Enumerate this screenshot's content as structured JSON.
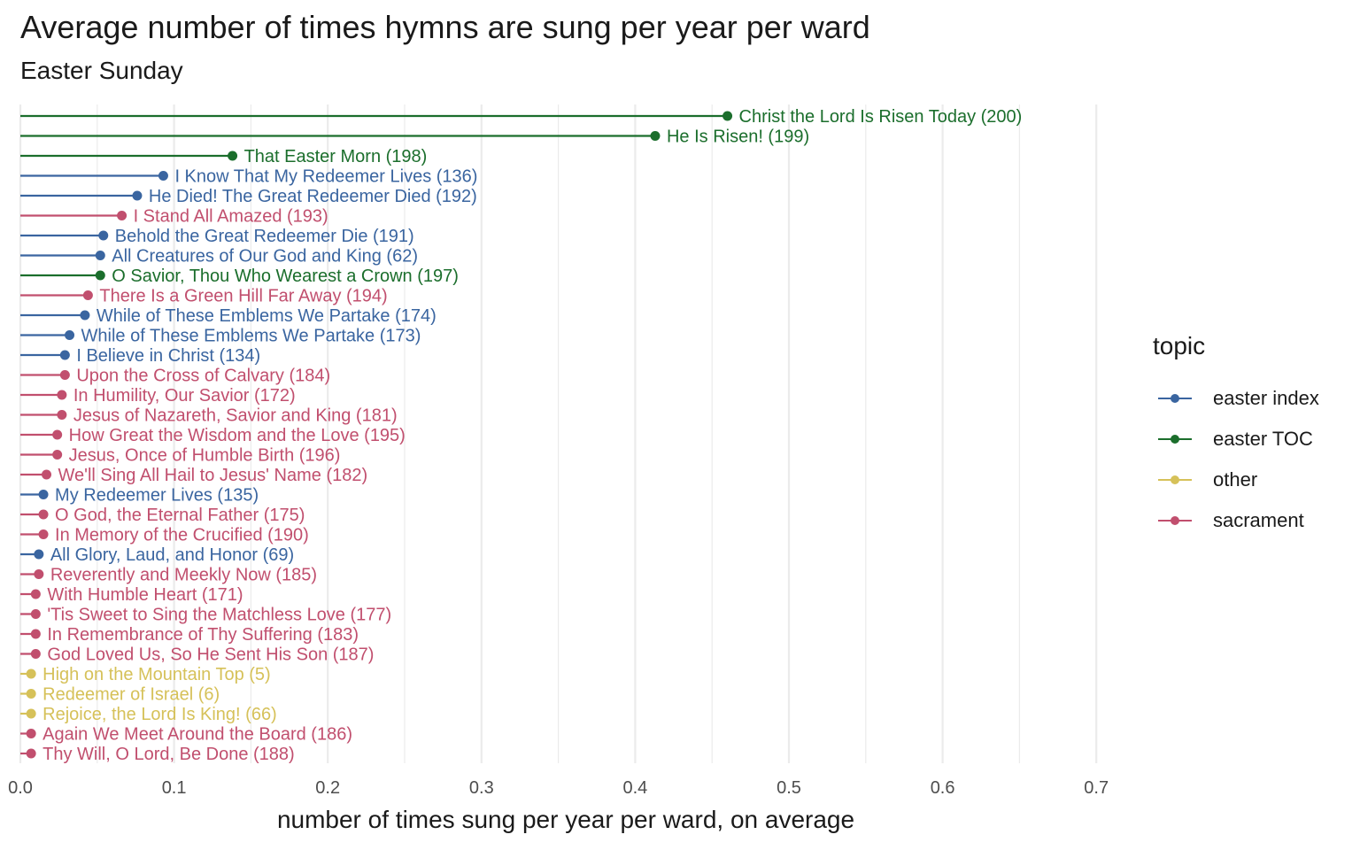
{
  "title": "Average number of times hymns are sung per year per ward",
  "subtitle": "Easter Sunday",
  "legend": {
    "title": "topic",
    "items": [
      {
        "label": "easter index",
        "color": "#3a65a0"
      },
      {
        "label": "easter TOC",
        "color": "#1b6e2c"
      },
      {
        "label": "other",
        "color": "#d6c159"
      },
      {
        "label": "sacrament",
        "color": "#c14f6e"
      }
    ]
  },
  "chart_data": {
    "type": "lollipop",
    "title": "Average number of times hymns are sung per year per ward",
    "subtitle": "Easter Sunday",
    "xlabel": "number of times sung per year per ward, on average",
    "ylabel": "",
    "xlim": [
      0,
      0.7
    ],
    "xticks": [
      "0.0",
      "0.1",
      "0.2",
      "0.3",
      "0.4",
      "0.5",
      "0.6",
      "0.7"
    ],
    "grid": true,
    "legend_position": "right",
    "series": [
      {
        "label": "Christ the Lord Is Risen Today (200)",
        "value": 0.46,
        "topic": "easter TOC"
      },
      {
        "label": "He Is Risen! (199)",
        "value": 0.413,
        "topic": "easter TOC"
      },
      {
        "label": "That Easter Morn (198)",
        "value": 0.138,
        "topic": "easter TOC"
      },
      {
        "label": "I Know That My Redeemer Lives (136)",
        "value": 0.093,
        "topic": "easter index"
      },
      {
        "label": "He Died! The Great Redeemer Died (192)",
        "value": 0.076,
        "topic": "easter index"
      },
      {
        "label": "I Stand All Amazed (193)",
        "value": 0.066,
        "topic": "sacrament"
      },
      {
        "label": "Behold the Great Redeemer Die (191)",
        "value": 0.054,
        "topic": "easter index"
      },
      {
        "label": "All Creatures of Our God and King (62)",
        "value": 0.052,
        "topic": "easter index"
      },
      {
        "label": "O Savior, Thou Who Wearest a Crown (197)",
        "value": 0.052,
        "topic": "easter TOC"
      },
      {
        "label": "There Is a Green Hill Far Away (194)",
        "value": 0.044,
        "topic": "sacrament"
      },
      {
        "label": "While of These Emblems We Partake (174)",
        "value": 0.042,
        "topic": "easter index"
      },
      {
        "label": "While of These Emblems We Partake (173)",
        "value": 0.032,
        "topic": "easter index"
      },
      {
        "label": "I Believe in Christ (134)",
        "value": 0.029,
        "topic": "easter index"
      },
      {
        "label": "Upon the Cross of Calvary (184)",
        "value": 0.029,
        "topic": "sacrament"
      },
      {
        "label": "In Humility, Our Savior (172)",
        "value": 0.027,
        "topic": "sacrament"
      },
      {
        "label": "Jesus of Nazareth, Savior and King (181)",
        "value": 0.027,
        "topic": "sacrament"
      },
      {
        "label": "How Great the Wisdom and the Love (195)",
        "value": 0.024,
        "topic": "sacrament"
      },
      {
        "label": "Jesus, Once of Humble Birth (196)",
        "value": 0.024,
        "topic": "sacrament"
      },
      {
        "label": "We'll Sing All Hail to Jesus' Name (182)",
        "value": 0.017,
        "topic": "sacrament"
      },
      {
        "label": "My Redeemer Lives (135)",
        "value": 0.015,
        "topic": "easter index"
      },
      {
        "label": "O God, the Eternal Father (175)",
        "value": 0.015,
        "topic": "sacrament"
      },
      {
        "label": "In Memory of the Crucified (190)",
        "value": 0.015,
        "topic": "sacrament"
      },
      {
        "label": "All Glory, Laud, and Honor (69)",
        "value": 0.012,
        "topic": "easter index"
      },
      {
        "label": "Reverently and Meekly Now (185)",
        "value": 0.012,
        "topic": "sacrament"
      },
      {
        "label": "With Humble Heart (171)",
        "value": 0.01,
        "topic": "sacrament"
      },
      {
        "label": "'Tis Sweet to Sing the Matchless Love (177)",
        "value": 0.01,
        "topic": "sacrament"
      },
      {
        "label": "In Remembrance of Thy Suffering (183)",
        "value": 0.01,
        "topic": "sacrament"
      },
      {
        "label": "God Loved Us, So He Sent His Son (187)",
        "value": 0.01,
        "topic": "sacrament"
      },
      {
        "label": "High on the Mountain Top (5)",
        "value": 0.007,
        "topic": "other"
      },
      {
        "label": "Redeemer of Israel (6)",
        "value": 0.007,
        "topic": "other"
      },
      {
        "label": "Rejoice, the Lord Is King! (66)",
        "value": 0.007,
        "topic": "other"
      },
      {
        "label": "Again We Meet Around the Board (186)",
        "value": 0.007,
        "topic": "sacrament"
      },
      {
        "label": "Thy Will, O Lord, Be Done (188)",
        "value": 0.007,
        "topic": "sacrament"
      }
    ]
  }
}
